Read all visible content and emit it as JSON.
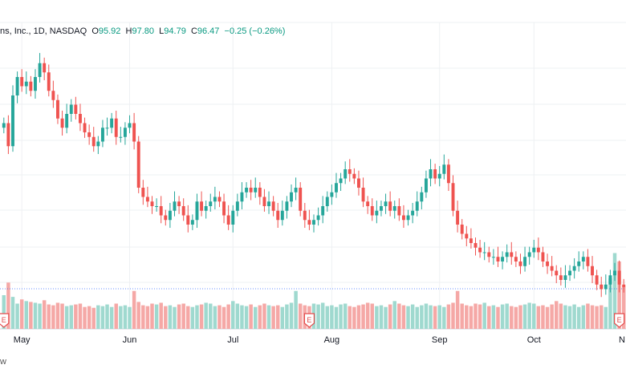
{
  "legend": {
    "symbol": "ns, Inc., 1D, NASDAQ",
    "o_label": "O",
    "o": "95.92",
    "h_label": "H",
    "h": "97.80",
    "l_label": "L",
    "l": "94.79",
    "c_label": "C",
    "c": "96.47",
    "change": "−0.25 (−0.26%)"
  },
  "watermark_text": "w",
  "colors": {
    "up": "#26a69a",
    "down": "#ef5350",
    "up_vol": "#9fd9cf",
    "down_vol": "#f5a8a6",
    "grid": "#eef0f3",
    "price_line": "#2962ff",
    "event": "#e34c4c"
  },
  "chart_data": {
    "type": "candlestick",
    "title": "ns, Inc., 1D, NASDAQ",
    "x_ticks": [
      {
        "label": "May",
        "index": 4
      },
      {
        "label": "Jun",
        "index": 28
      },
      {
        "label": "Jul",
        "index": 51
      },
      {
        "label": "Aug",
        "index": 73
      },
      {
        "label": "Sep",
        "index": 97
      },
      {
        "label": "Oct",
        "index": 118
      },
      {
        "label": "N",
        "index": 140
      }
    ],
    "y_range": [
      90,
      150
    ],
    "last_price": 96.47,
    "earnings_markers": [
      0,
      68,
      137
    ],
    "earnings_label": "E",
    "closes": [
      132,
      127,
      138,
      142,
      140,
      141,
      139,
      142,
      145,
      143,
      139,
      137,
      133,
      131,
      134,
      136,
      134,
      132,
      130,
      129,
      127,
      128,
      131,
      131,
      133,
      129,
      129,
      131,
      132,
      128,
      118,
      116,
      115,
      114,
      114,
      112,
      111,
      113,
      115,
      114,
      112,
      110,
      111,
      115,
      113,
      114,
      115,
      116,
      115,
      112,
      110,
      113,
      115,
      117,
      118,
      117,
      118,
      116,
      114,
      115,
      113,
      111,
      113,
      115,
      117,
      118,
      113,
      111,
      110,
      111,
      112,
      114,
      116,
      117,
      119,
      120,
      122,
      121,
      120,
      118,
      115,
      114,
      112,
      113,
      114,
      115,
      113,
      114,
      112,
      111,
      112,
      113,
      115,
      117,
      120,
      122,
      120,
      121,
      123,
      119,
      113,
      110,
      108,
      107,
      106,
      105,
      104,
      104,
      103,
      103,
      102,
      103,
      104,
      103,
      102,
      101,
      103,
      104,
      105,
      104,
      102,
      101,
      100,
      99,
      98,
      99,
      100,
      101,
      102,
      103,
      101,
      99,
      97,
      96,
      97,
      99,
      100,
      97,
      96.47
    ],
    "volumes": [
      40,
      55,
      38,
      30,
      35,
      33,
      32,
      31,
      30,
      34,
      29,
      28,
      31,
      30,
      27,
      28,
      29,
      30,
      26,
      27,
      25,
      28,
      27,
      29,
      26,
      30,
      27,
      28,
      26,
      45,
      32,
      28,
      27,
      30,
      29,
      31,
      27,
      28,
      26,
      29,
      30,
      27,
      26,
      28,
      29,
      31,
      30,
      27,
      28,
      26,
      29,
      33,
      30,
      28,
      27,
      29,
      26,
      28,
      30,
      28,
      27,
      28,
      26,
      29,
      31,
      45,
      30,
      28,
      27,
      30,
      29,
      31,
      27,
      28,
      26,
      29,
      30,
      27,
      26,
      28,
      29,
      31,
      30,
      27,
      28,
      26,
      29,
      33,
      30,
      28,
      27,
      29,
      26,
      28,
      30,
      28,
      27,
      28,
      26,
      29,
      31,
      45,
      30,
      28,
      27,
      30,
      29,
      31,
      27,
      28,
      26,
      29,
      30,
      27,
      26,
      28,
      29,
      31,
      30,
      27,
      28,
      26,
      29,
      33,
      30,
      28,
      27,
      29,
      26,
      28,
      30,
      28,
      27,
      28,
      26,
      60,
      90,
      80,
      50
    ],
    "volume_range": [
      0,
      100
    ]
  }
}
